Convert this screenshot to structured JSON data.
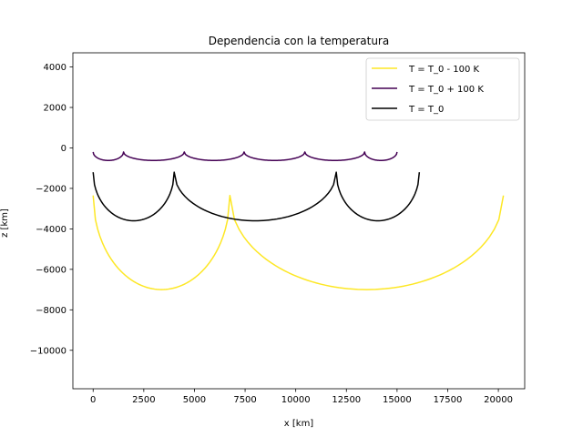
{
  "chart_data": {
    "type": "line",
    "title": "Dependencia con la temperatura",
    "xlabel": "x [km]",
    "ylabel": "z [km]",
    "xlim": [
      -1000,
      21300
    ],
    "ylim": [
      -11900,
      4700
    ],
    "xticks": [
      0,
      2500,
      5000,
      7500,
      10000,
      12500,
      15000,
      17500,
      20000
    ],
    "yticks": [
      4000,
      2000,
      0,
      -2000,
      -4000,
      -6000,
      -8000,
      -10000
    ],
    "grid": false,
    "legend": "top-right",
    "series": [
      {
        "name": "T = T_0 - 100 K",
        "color": "#fde725",
        "arches": [
          {
            "x0": 0,
            "x1": 6750,
            "zmin": -7000,
            "zmax": -2350
          },
          {
            "x0": 6750,
            "x1": 20250,
            "zmin": -7000,
            "zmax": -2350
          }
        ]
      },
      {
        "name": "T = T_0 + 100 K",
        "color": "#440154",
        "arches": [
          {
            "x0": 0,
            "x1": 1500,
            "zmin": -620,
            "zmax": -200
          },
          {
            "x0": 1500,
            "x1": 4500,
            "zmin": -620,
            "zmax": -200
          },
          {
            "x0": 4500,
            "x1": 7450,
            "zmin": -620,
            "zmax": -200
          },
          {
            "x0": 7450,
            "x1": 10450,
            "zmin": -620,
            "zmax": -200
          },
          {
            "x0": 10450,
            "x1": 13400,
            "zmin": -620,
            "zmax": -200
          },
          {
            "x0": 13400,
            "x1": 15000,
            "zmin": -620,
            "zmax": -200
          }
        ]
      },
      {
        "name": "T = T_0",
        "color": "#000000",
        "arches": [
          {
            "x0": 0,
            "x1": 4000,
            "zmin": -3600,
            "zmax": -1200
          },
          {
            "x0": 4000,
            "x1": 12000,
            "zmin": -3600,
            "zmax": -1200
          },
          {
            "x0": 12000,
            "x1": 16100,
            "zmin": -3600,
            "zmax": -1200
          }
        ]
      }
    ]
  }
}
